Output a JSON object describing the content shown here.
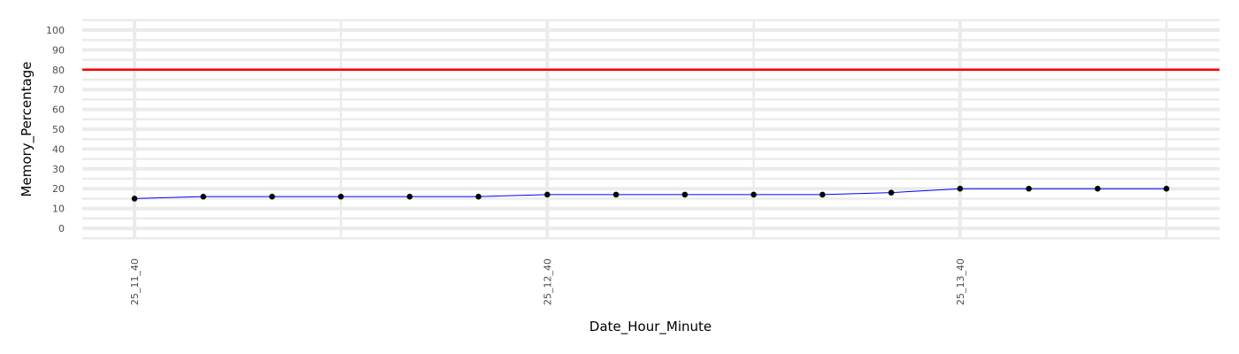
{
  "chart_data": {
    "type": "line",
    "title": "",
    "xlabel": "Date_Hour_Minute",
    "ylabel": "Memory_Percentage",
    "x_tick_labels": [
      "25_11_40",
      "25_12_40",
      "25_13_40"
    ],
    "y_ticks": [
      0,
      10,
      20,
      30,
      40,
      50,
      60,
      70,
      80,
      90,
      100
    ],
    "ylim": [
      -5,
      105
    ],
    "grid": true,
    "threshold": {
      "value": 80,
      "color": "#ff0000"
    },
    "series": [
      {
        "line_color": "#0000ff",
        "point_color": "#000000",
        "x": [
          "25_11_40",
          "25_11_50",
          "25_12_00",
          "25_12_10",
          "25_12_20",
          "25_12_30",
          "25_12_40",
          "25_12_50",
          "25_13_00",
          "25_13_10",
          "25_13_20",
          "25_13_30",
          "25_13_40",
          "25_13_50",
          "25_14_00",
          "25_14_10"
        ],
        "values": [
          15,
          16,
          16,
          16,
          16,
          16,
          17,
          17,
          17,
          17,
          17,
          18,
          20,
          20,
          20,
          20
        ]
      }
    ]
  }
}
